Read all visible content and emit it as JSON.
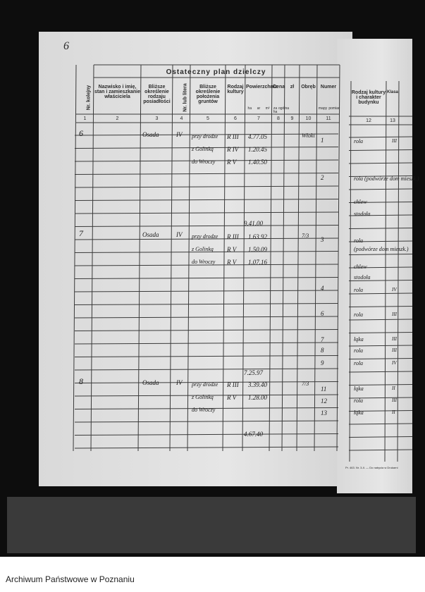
{
  "page_number": "6",
  "table": {
    "title": "Ostateczny plan dzielczy",
    "headers": [
      {
        "label": "Nr. kolejny",
        "number": "1"
      },
      {
        "label": "Nazwisko i imię, stan i zamieszkanie właściciela",
        "number": "2"
      },
      {
        "label": "Bliższe określenie rodzaju posiadłości",
        "number": "3"
      },
      {
        "label": "Nr. lub litera",
        "number": "4"
      },
      {
        "label": "Bliższe określenie położenia gruntów",
        "number": "5"
      },
      {
        "label": "Rodzaj kultury",
        "number": "6"
      },
      {
        "label": "Powierzchnia",
        "number": "7",
        "sub": [
          "ha",
          "ar",
          "m²"
        ]
      },
      {
        "label": "Cena",
        "number": "8",
        "sub": [
          "za ha",
          "ogólna"
        ]
      },
      {
        "label": "zł",
        "number": "9"
      },
      {
        "label": "Obręb",
        "number": "10"
      },
      {
        "label": "Numer",
        "number": "11",
        "sub": [
          "mapy",
          "pomiar"
        ]
      }
    ],
    "entries": [
      {
        "number": "6",
        "holding": "Osada",
        "letter": "IV",
        "parcels": [
          {
            "location": "przy drodze",
            "culture": "R III",
            "area": "4.77.05"
          },
          {
            "location": "z Golinką",
            "culture": "R IV",
            "area": "1.20.45"
          },
          {
            "location": "do Wroczy",
            "culture": "R V",
            "area": "1.40.50"
          }
        ],
        "total": "9.41.00",
        "district": "Włoki",
        "map_numbers": [
          "1",
          "2"
        ]
      },
      {
        "number": "7",
        "holding": "Osada",
        "letter": "IV",
        "parcels": [
          {
            "location": "przy drodze",
            "culture": "R III",
            "area": "1.63.92"
          },
          {
            "location": "z Golinką",
            "culture": "R V",
            "area": "1.50.09"
          },
          {
            "location": "do Wroczy",
            "culture": "R V",
            "area": "1.07.16"
          }
        ],
        "total": "7.25.97",
        "district": "7/3",
        "map_numbers": [
          "3",
          "4",
          "6",
          "7",
          "8",
          "9"
        ]
      },
      {
        "number": "8",
        "holding": "Osada",
        "letter": "IV",
        "parcels": [
          {
            "location": "przy drodze",
            "culture": "R III",
            "area": "3.39.40"
          },
          {
            "location": "z Golinką",
            "culture": "R V",
            "area": "1.28.00"
          },
          {
            "location": "do Wroczy"
          }
        ],
        "total": "4.67.40",
        "district": "7/3",
        "map_numbers": [
          "11",
          "12",
          "13"
        ]
      }
    ]
  },
  "right_page": {
    "headers": [
      {
        "label": "Rodzaj kultury i charakter budynku",
        "number": "12"
      },
      {
        "label": "Klasa",
        "number": "13"
      }
    ],
    "rows": [
      {
        "culture": "rola",
        "class": "III"
      },
      {
        "culture": "rola (podwórze dom mieszk.)"
      },
      {
        "culture": "chlew"
      },
      {
        "culture": "stodoła"
      },
      {
        "culture": "rola"
      },
      {
        "culture": "(podwórze dom mieszk.)"
      },
      {
        "culture": "chlew"
      },
      {
        "culture": "stodoła"
      },
      {
        "culture": "rola",
        "class": "IV"
      },
      {
        "culture": "rola",
        "class": "III"
      },
      {
        "culture": "łąka",
        "class": "III"
      },
      {
        "culture": "rola",
        "class": "III"
      },
      {
        "culture": "rola",
        "class": "IV"
      },
      {
        "culture": "łąka",
        "class": "II"
      },
      {
        "culture": "rola",
        "class": "III"
      },
      {
        "culture": "łąka",
        "class": "II"
      }
    ],
    "imprint": "Pr. 463. Nr. 3-II. — Do nabycia w Drukarni"
  },
  "footer": "Archiwum Państwowe w Poznaniu"
}
